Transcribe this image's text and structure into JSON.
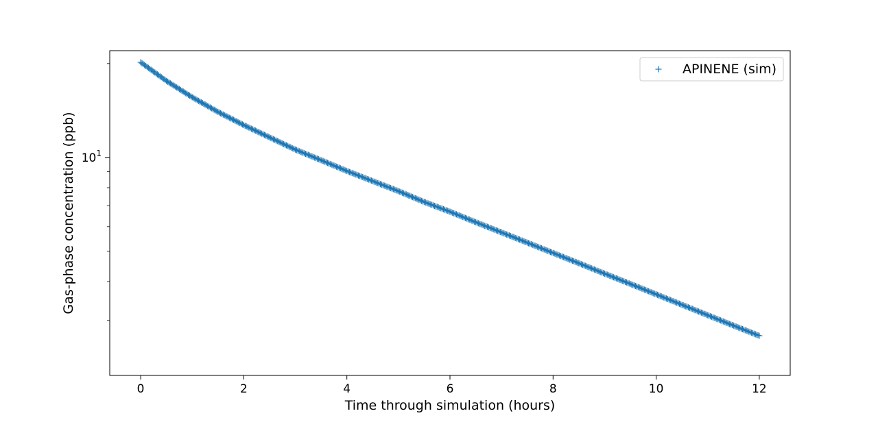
{
  "chart_data": {
    "type": "scatter",
    "title": "",
    "xlabel": "Time through simulation (hours)",
    "ylabel": "Gas-phase concentration (ppb)",
    "xlim": [
      -0.6,
      12.6
    ],
    "ylim": [
      2.0,
      22.0
    ],
    "yscale": "log",
    "xticks": [
      "0",
      "2",
      "4",
      "6",
      "8",
      "10",
      "12"
    ],
    "yticks_major": [
      {
        "value": 10,
        "base": "10",
        "exponent": "1"
      }
    ],
    "yticks_minor": [
      3,
      4,
      5,
      6,
      7,
      8,
      9,
      20
    ],
    "grid": false,
    "legend_position": "top-right",
    "marker": "+",
    "series": [
      {
        "name": "APINENE (sim)",
        "color": "#1f77b4",
        "x": [
          0,
          0.5,
          1,
          1.5,
          2,
          2.5,
          3,
          3.5,
          4,
          4.5,
          5,
          5.5,
          6,
          6.5,
          7,
          7.5,
          8,
          8.5,
          9,
          9.5,
          10,
          10.5,
          11,
          11.5,
          12
        ],
        "y": [
          20.2,
          17.6,
          15.6,
          14.0,
          12.7,
          11.6,
          10.6,
          9.8,
          9.05,
          8.4,
          7.8,
          7.2,
          6.7,
          6.2,
          5.75,
          5.33,
          4.94,
          4.58,
          4.24,
          3.93,
          3.64,
          3.37,
          3.12,
          2.89,
          2.68
        ]
      }
    ]
  }
}
